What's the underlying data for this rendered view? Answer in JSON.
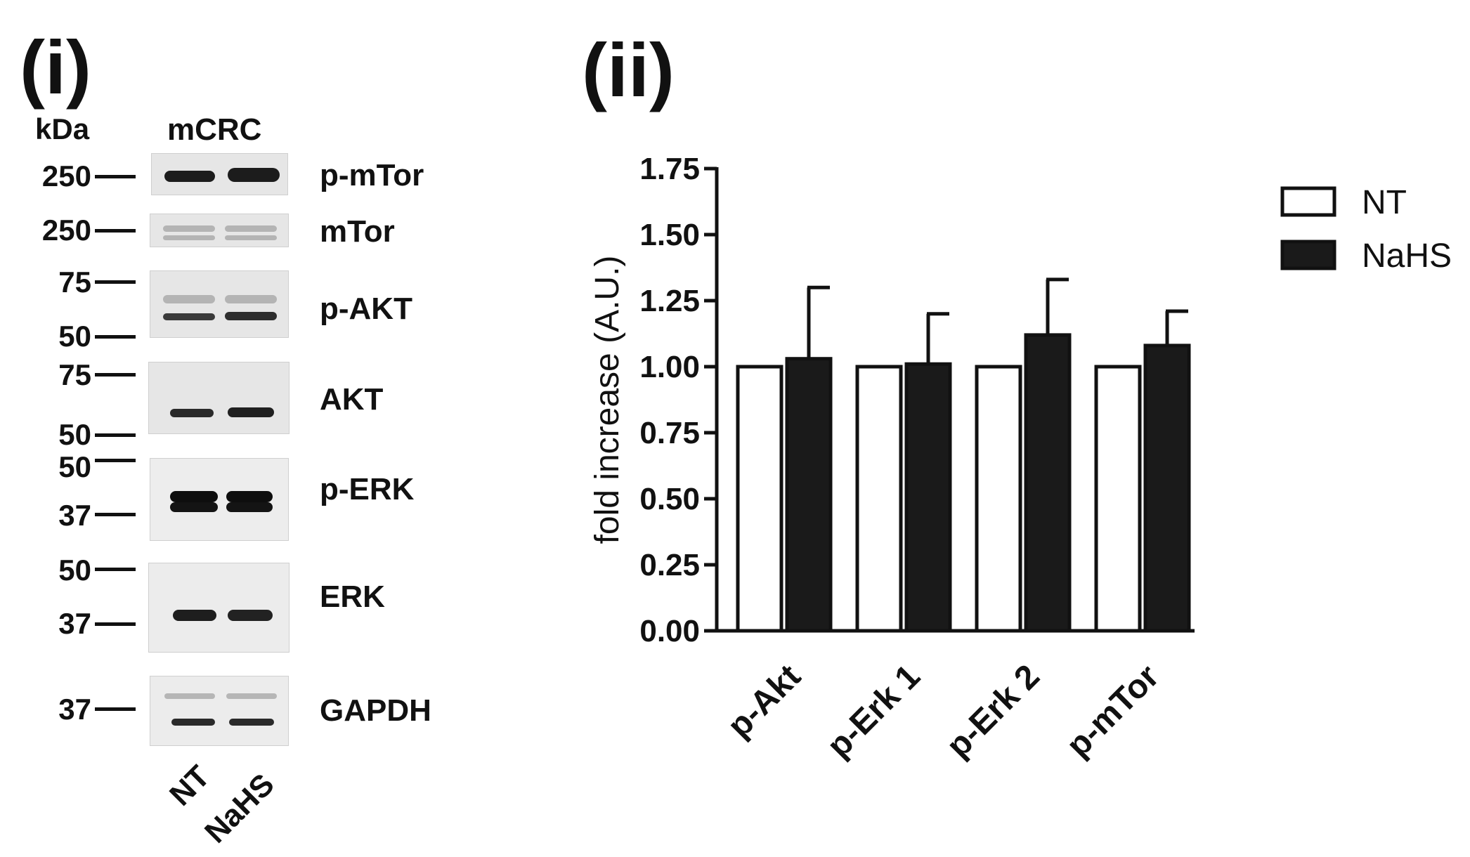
{
  "panel_i": {
    "label": "(i)",
    "kda_label": "kDa",
    "cell_label": "mCRC",
    "blots": [
      {
        "protein": "p-mTor",
        "markers": [
          "250"
        ]
      },
      {
        "protein": "mTor",
        "markers": [
          "250"
        ]
      },
      {
        "protein": "p-AKT",
        "markers": [
          "75",
          "50"
        ]
      },
      {
        "protein": "AKT",
        "markers": [
          "75",
          "50"
        ]
      },
      {
        "protein": "p-ERK",
        "markers": [
          "50",
          "37"
        ]
      },
      {
        "protein": "ERK",
        "markers": [
          "50",
          "37"
        ]
      },
      {
        "protein": "GAPDH",
        "markers": [
          "37"
        ]
      }
    ],
    "lanes": [
      "NT",
      "NaHS"
    ]
  },
  "panel_ii": {
    "label": "(ii)"
  },
  "chart_data": {
    "type": "bar",
    "title": "",
    "xlabel": "",
    "ylabel": "fold increase (A.U.)",
    "ylim": [
      0,
      1.75
    ],
    "yticks": [
      "0.00",
      "0.25",
      "0.50",
      "0.75",
      "1.00",
      "1.25",
      "1.50",
      "1.75"
    ],
    "categories": [
      "p-Akt",
      "p-Erk 1",
      "p-Erk 2",
      "p-mTor"
    ],
    "series": [
      {
        "name": "NT",
        "color": "#ffffff",
        "values": [
          1.0,
          1.0,
          1.0,
          1.0
        ],
        "errors": [
          0,
          0,
          0,
          0
        ]
      },
      {
        "name": "NaHS",
        "color": "#1a1a1a",
        "values": [
          1.03,
          1.01,
          1.12,
          1.08
        ],
        "errors": [
          0.27,
          0.19,
          0.21,
          0.13
        ]
      }
    ],
    "legend": "top-right"
  }
}
